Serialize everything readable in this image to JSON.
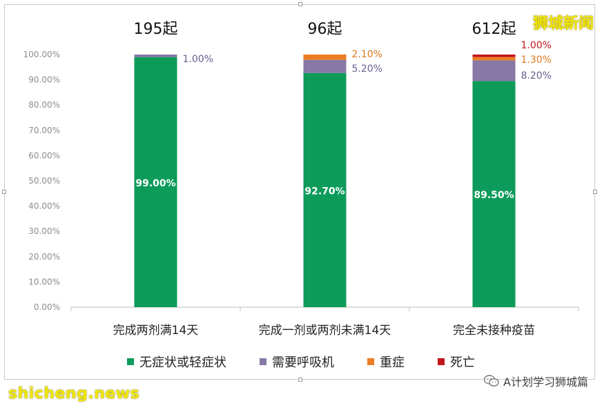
{
  "chart_data": {
    "type": "bar",
    "stacked": true,
    "categories": [
      "完成两剂满14天",
      "完成一剂或两剂未满14天",
      "完全未接种疫苗"
    ],
    "group_labels": [
      "195起",
      "96起",
      "612起"
    ],
    "ylim": [
      0,
      100
    ],
    "yticks": [
      "0.00%",
      "10.00%",
      "20.00%",
      "30.00%",
      "40.00%",
      "50.00%",
      "60.00%",
      "70.00%",
      "80.00%",
      "90.00%",
      "100.00%"
    ],
    "legend_position": "bottom",
    "grid": false,
    "series": [
      {
        "name": "无症状或轻症状",
        "color": "#0d9b5a",
        "values": [
          99.0,
          92.7,
          89.5
        ],
        "labels": [
          "99.00%",
          "92.70%",
          "89.50%"
        ]
      },
      {
        "name": "需要呼吸机",
        "color": "#8778a6",
        "values": [
          1.0,
          5.2,
          8.2
        ],
        "labels": [
          "1.00%",
          "5.20%",
          "8.20%"
        ]
      },
      {
        "name": "重症",
        "color": "#ec7d22",
        "values": [
          0,
          2.1,
          1.3
        ],
        "labels": [
          "",
          "2.10%",
          "1.30%"
        ]
      },
      {
        "name": "死亡",
        "color": "#c0161c",
        "values": [
          0,
          0,
          1.0
        ],
        "labels": [
          "",
          "",
          "1.00%"
        ]
      }
    ]
  },
  "watermarks": {
    "brand": "狮城新闻",
    "site": "shicheng.news",
    "wechat": "A计划学习狮城篇"
  }
}
